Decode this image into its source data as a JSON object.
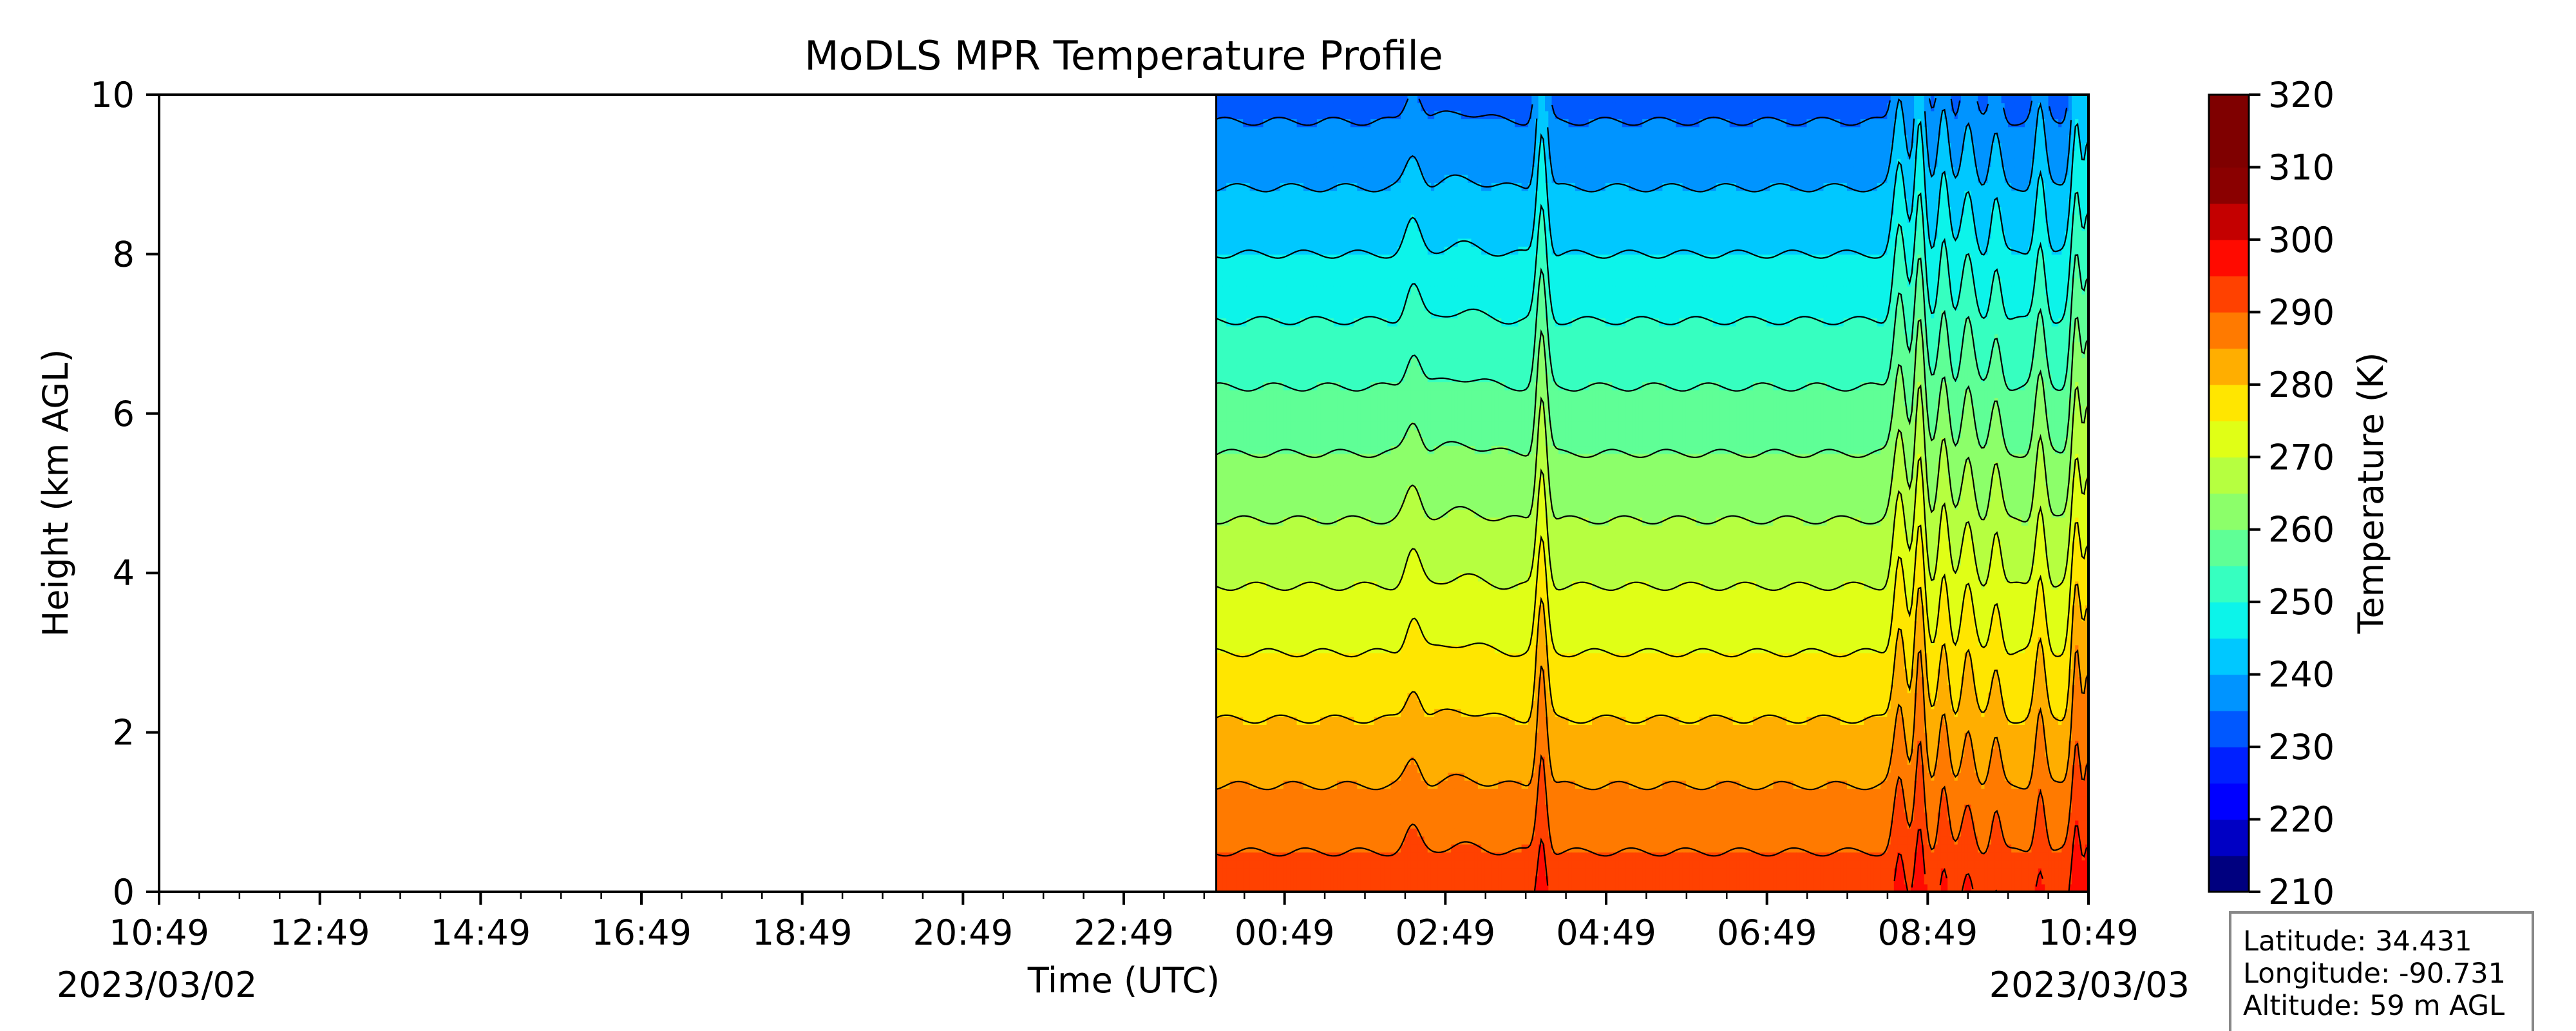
{
  "chart_data": {
    "type": "heatmap",
    "subtype": "filled-contour time-height section",
    "title": "MoDLS MPR Temperature Profile",
    "xlabel": "Time (UTC)",
    "ylabel": "Height (km AGL)",
    "colorbar_label": "Temperature (K)",
    "x_tick_labels": [
      "10:49",
      "12:49",
      "14:49",
      "16:49",
      "18:49",
      "20:49",
      "22:49",
      "00:49",
      "02:49",
      "04:49",
      "06:49",
      "08:49",
      "10:49"
    ],
    "x_ticks_hours": [
      0,
      2,
      4,
      6,
      8,
      10,
      12,
      14,
      16,
      18,
      20,
      22,
      24
    ],
    "x_minor_step_hours": 0.5,
    "start_date": "2023/03/02",
    "end_date": "2023/03/03",
    "ylim": [
      0,
      10
    ],
    "y_ticks": [
      0,
      2,
      4,
      6,
      8,
      10
    ],
    "data_start_hours": 13.15,
    "colorbar": {
      "vmin": 210,
      "vmax": 320,
      "step": 5,
      "tick_labels": [
        210,
        220,
        230,
        240,
        250,
        260,
        270,
        280,
        290,
        300,
        310,
        320
      ],
      "colors": [
        "#00007f",
        "#0000c4",
        "#0000ff",
        "#0020ff",
        "#0058ff",
        "#0094ff",
        "#00c8ff",
        "#0cf4ea",
        "#36ffc0",
        "#5fff96",
        "#8cff6a",
        "#b6ff40",
        "#e0ff16",
        "#ffe600",
        "#ffae00",
        "#ff7a00",
        "#ff4100",
        "#ff0a00",
        "#c40000",
        "#8a0000",
        "#7f0000",
        "#7f0000"
      ]
    },
    "surface_temperature_K": 293,
    "lapse_rate_K_per_km": 6,
    "perturbations": [
      {
        "t_hours": 15.6,
        "width_hours": 0.09,
        "amp_K": 2.5
      },
      {
        "t_hours": 16.2,
        "width_hours": 0.25,
        "amp_K": 0.7
      },
      {
        "t_hours": 17.2,
        "width_hours": 0.06,
        "amp_K": 9
      },
      {
        "t_hours": 21.65,
        "width_hours": 0.07,
        "amp_K": 7
      },
      {
        "t_hours": 21.9,
        "width_hours": 0.06,
        "amp_K": 10
      },
      {
        "t_hours": 22.2,
        "width_hours": 0.06,
        "amp_K": 6
      },
      {
        "t_hours": 22.5,
        "width_hours": 0.07,
        "amp_K": 5
      },
      {
        "t_hours": 22.85,
        "width_hours": 0.06,
        "amp_K": 4
      },
      {
        "t_hours": 23.4,
        "width_hours": 0.06,
        "amp_K": 6
      },
      {
        "t_hours": 23.85,
        "width_hours": 0.06,
        "amp_K": 10
      },
      {
        "t_hours": 24.0,
        "width_hours": 0.05,
        "amp_K": 8
      }
    ]
  },
  "info_box": {
    "latitude": "Latitude: 34.431",
    "longitude": "Longitude: -90.731",
    "altitude": "Altitude: 59 m AGL"
  }
}
